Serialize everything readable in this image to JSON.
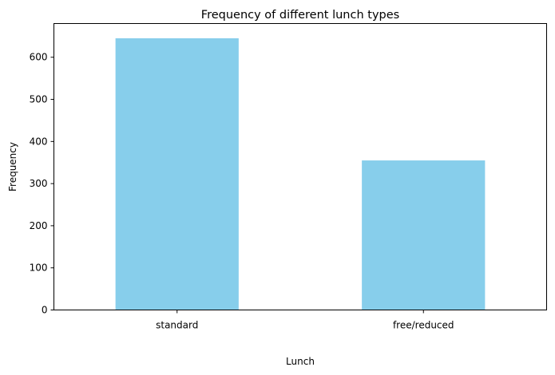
{
  "chart_data": {
    "type": "bar",
    "title": "Frequency of different lunch types",
    "xlabel": "Lunch",
    "ylabel": "Frequency",
    "categories": [
      "standard",
      "free/reduced"
    ],
    "values": [
      645,
      355
    ],
    "ylim": [
      0,
      680
    ],
    "yticks": [
      0,
      100,
      200,
      300,
      400,
      500,
      600
    ],
    "bar_color": "#87CEEB",
    "grid": false,
    "legend": false
  }
}
